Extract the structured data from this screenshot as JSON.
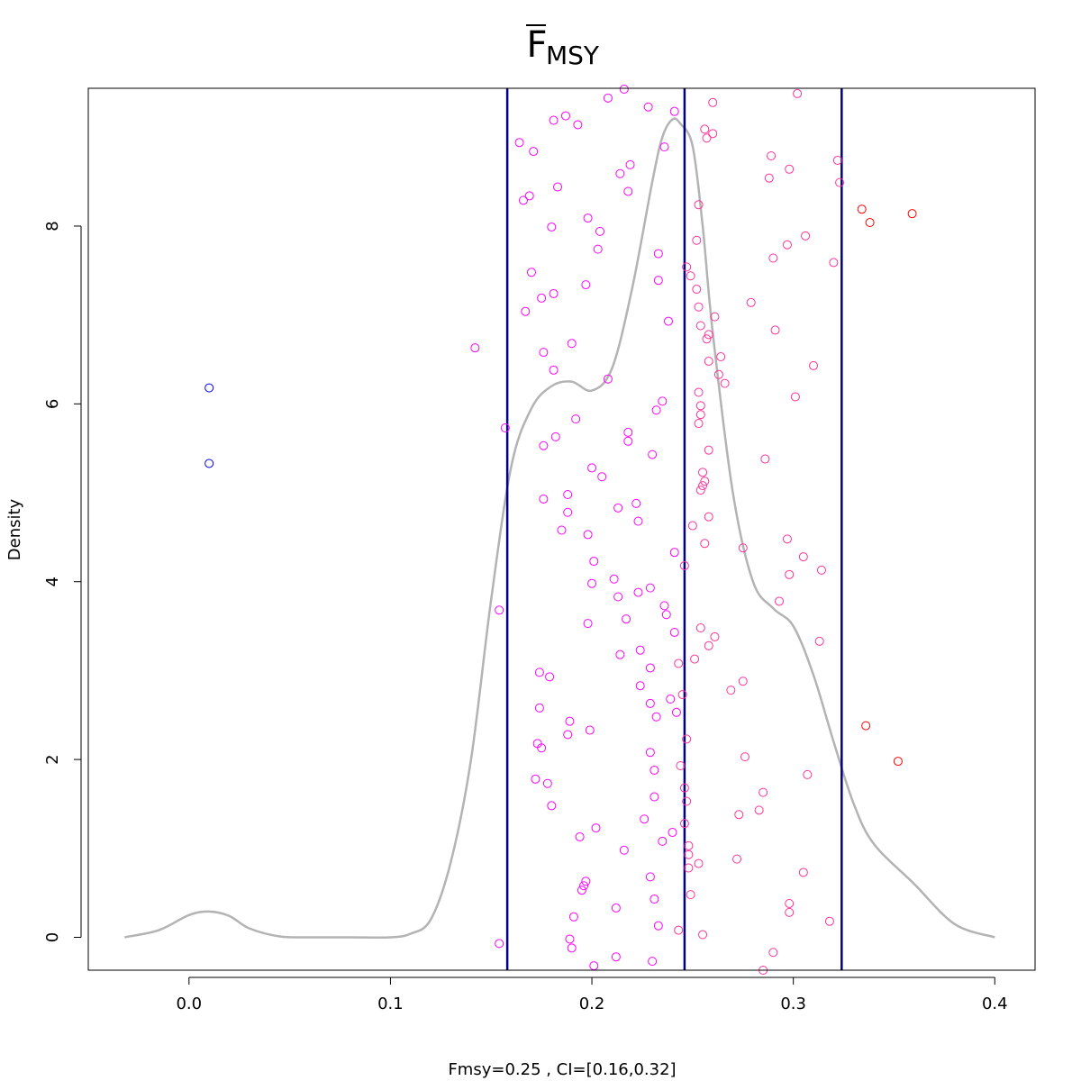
{
  "chart_data": {
    "type": "scatter",
    "title": {
      "main": "F",
      "subscript": "MSY"
    },
    "xlabel": "Fmsy=0.25 , CI=[0.16,0.32]",
    "ylabel": "Density",
    "xlim": [
      -0.05,
      0.42
    ],
    "ylim": [
      -0.37,
      9.55
    ],
    "x_ticks": [
      {
        "value": 0.0,
        "label": "0.0"
      },
      {
        "value": 0.1,
        "label": "0.1"
      },
      {
        "value": 0.2,
        "label": "0.2"
      },
      {
        "value": 0.3,
        "label": "0.3"
      },
      {
        "value": 0.4,
        "label": "0.4"
      }
    ],
    "y_ticks": [
      {
        "value": 0,
        "label": "0"
      },
      {
        "value": 2,
        "label": "2"
      },
      {
        "value": 4,
        "label": "4"
      },
      {
        "value": 6,
        "label": "6"
      },
      {
        "value": 8,
        "label": "8"
      }
    ],
    "grid": false,
    "reference_lines": [
      {
        "x": 0.158,
        "color": "#000080"
      },
      {
        "x": 0.246,
        "color": "#000080"
      },
      {
        "x": 0.324,
        "color": "#000080"
      }
    ],
    "density_curve": {
      "color": "#b3b3b3",
      "x": [
        -0.032,
        -0.015,
        0.0,
        0.01,
        0.02,
        0.03,
        0.045,
        0.06,
        0.08,
        0.1,
        0.11,
        0.12,
        0.13,
        0.14,
        0.15,
        0.16,
        0.17,
        0.18,
        0.19,
        0.2,
        0.21,
        0.22,
        0.23,
        0.235,
        0.24,
        0.244,
        0.25,
        0.255,
        0.26,
        0.27,
        0.28,
        0.29,
        0.3,
        0.31,
        0.32,
        0.33,
        0.34,
        0.36,
        0.38,
        0.4
      ],
      "y": [
        0.0,
        0.08,
        0.25,
        0.29,
        0.24,
        0.1,
        0.01,
        0.0,
        0.0,
        0.0,
        0.04,
        0.2,
        0.85,
        2.0,
        3.8,
        5.3,
        5.95,
        6.2,
        6.25,
        6.15,
        6.4,
        7.3,
        8.5,
        9.0,
        9.2,
        9.15,
        8.9,
        8.0,
        6.8,
        5.0,
        4.0,
        3.7,
        3.5,
        2.95,
        2.2,
        1.5,
        1.05,
        0.6,
        0.15,
        0.0
      ]
    },
    "series": [
      {
        "color": "#0000ff",
        "points": [
          [
            0.01,
            6.18
          ],
          [
            0.01,
            5.33
          ]
        ]
      },
      {
        "color": "#ff00ff",
        "points": [
          [
            0.142,
            6.63
          ],
          [
            0.154,
            3.68
          ],
          [
            0.154,
            -0.07
          ],
          [
            0.157,
            5.73
          ],
          [
            0.164,
            8.94
          ],
          [
            0.166,
            8.29
          ],
          [
            0.167,
            7.04
          ],
          [
            0.169,
            8.34
          ],
          [
            0.17,
            7.48
          ],
          [
            0.171,
            8.84
          ],
          [
            0.172,
            1.78
          ],
          [
            0.173,
            2.18
          ],
          [
            0.174,
            2.98
          ],
          [
            0.174,
            2.58
          ],
          [
            0.175,
            7.19
          ],
          [
            0.175,
            2.13
          ],
          [
            0.176,
            6.58
          ],
          [
            0.176,
            5.53
          ],
          [
            0.176,
            4.93
          ],
          [
            0.178,
            1.73
          ],
          [
            0.179,
            2.93
          ],
          [
            0.18,
            1.48
          ],
          [
            0.18,
            7.99
          ],
          [
            0.181,
            9.19
          ],
          [
            0.181,
            7.24
          ],
          [
            0.181,
            6.38
          ],
          [
            0.182,
            5.63
          ],
          [
            0.183,
            8.44
          ],
          [
            0.185,
            4.58
          ],
          [
            0.187,
            9.24
          ],
          [
            0.188,
            4.98
          ],
          [
            0.188,
            4.78
          ],
          [
            0.188,
            2.28
          ],
          [
            0.189,
            2.43
          ],
          [
            0.189,
            -0.02
          ],
          [
            0.19,
            6.68
          ],
          [
            0.19,
            -0.12
          ],
          [
            0.191,
            0.23
          ],
          [
            0.192,
            5.83
          ],
          [
            0.193,
            9.14
          ],
          [
            0.194,
            1.13
          ],
          [
            0.195,
            0.53
          ],
          [
            0.196,
            0.58
          ],
          [
            0.197,
            0.63
          ],
          [
            0.197,
            7.34
          ],
          [
            0.198,
            8.09
          ],
          [
            0.198,
            4.53
          ],
          [
            0.198,
            3.53
          ],
          [
            0.199,
            2.33
          ],
          [
            0.2,
            3.98
          ],
          [
            0.2,
            5.28
          ],
          [
            0.201,
            4.23
          ],
          [
            0.201,
            -0.32
          ],
          [
            0.202,
            1.23
          ],
          [
            0.203,
            7.74
          ],
          [
            0.204,
            7.94
          ],
          [
            0.205,
            5.18
          ],
          [
            0.208,
            9.44
          ],
          [
            0.208,
            6.28
          ],
          [
            0.211,
            4.03
          ],
          [
            0.212,
            -0.22
          ],
          [
            0.212,
            0.33
          ],
          [
            0.213,
            3.83
          ],
          [
            0.213,
            4.83
          ],
          [
            0.214,
            8.59
          ],
          [
            0.214,
            3.18
          ],
          [
            0.216,
            0.98
          ],
          [
            0.216,
            9.54
          ],
          [
            0.217,
            3.58
          ],
          [
            0.218,
            5.68
          ],
          [
            0.218,
            5.58
          ],
          [
            0.218,
            8.39
          ],
          [
            0.219,
            8.69
          ],
          [
            0.222,
            4.88
          ],
          [
            0.223,
            3.88
          ],
          [
            0.223,
            4.68
          ],
          [
            0.224,
            3.23
          ],
          [
            0.224,
            2.83
          ],
          [
            0.226,
            1.33
          ],
          [
            0.228,
            9.34
          ],
          [
            0.229,
            3.93
          ],
          [
            0.229,
            2.63
          ],
          [
            0.229,
            2.08
          ],
          [
            0.229,
            0.68
          ],
          [
            0.229,
            3.03
          ],
          [
            0.23,
            5.43
          ],
          [
            0.23,
            -0.27
          ],
          [
            0.231,
            1.88
          ],
          [
            0.231,
            1.58
          ],
          [
            0.231,
            0.43
          ],
          [
            0.232,
            2.48
          ],
          [
            0.232,
            5.93
          ],
          [
            0.233,
            0.13
          ],
          [
            0.233,
            7.39
          ],
          [
            0.233,
            7.69
          ],
          [
            0.235,
            1.08
          ],
          [
            0.235,
            6.03
          ],
          [
            0.236,
            3.73
          ],
          [
            0.236,
            8.89
          ],
          [
            0.237,
            3.63
          ],
          [
            0.238,
            6.93
          ],
          [
            0.239,
            2.68
          ],
          [
            0.24,
            1.18
          ],
          [
            0.241,
            9.29
          ],
          [
            0.241,
            4.33
          ],
          [
            0.241,
            3.43
          ],
          [
            0.242,
            2.53
          ]
        ]
      },
      {
        "color": "#ff3399",
        "points": [
          [
            0.243,
            3.08
          ],
          [
            0.243,
            0.08
          ],
          [
            0.244,
            1.93
          ],
          [
            0.245,
            2.73
          ],
          [
            0.246,
            4.18
          ],
          [
            0.246,
            1.28
          ],
          [
            0.246,
            1.68
          ],
          [
            0.247,
            2.23
          ],
          [
            0.247,
            1.53
          ],
          [
            0.247,
            7.54
          ],
          [
            0.248,
            0.78
          ],
          [
            0.248,
            1.03
          ],
          [
            0.248,
            0.93
          ],
          [
            0.249,
            7.44
          ],
          [
            0.249,
            0.48
          ],
          [
            0.25,
            4.63
          ],
          [
            0.251,
            3.13
          ],
          [
            0.252,
            7.84
          ],
          [
            0.252,
            7.29
          ],
          [
            0.253,
            8.24
          ],
          [
            0.253,
            7.09
          ],
          [
            0.253,
            0.83
          ],
          [
            0.253,
            5.78
          ],
          [
            0.253,
            6.13
          ],
          [
            0.254,
            5.98
          ],
          [
            0.254,
            5.88
          ],
          [
            0.254,
            6.88
          ],
          [
            0.254,
            5.03
          ],
          [
            0.254,
            3.48
          ],
          [
            0.255,
            5.23
          ],
          [
            0.255,
            0.03
          ],
          [
            0.255,
            5.08
          ],
          [
            0.256,
            4.43
          ],
          [
            0.256,
            5.13
          ],
          [
            0.256,
            9.09
          ],
          [
            0.257,
            6.73
          ],
          [
            0.257,
            8.99
          ],
          [
            0.258,
            6.48
          ],
          [
            0.258,
            3.28
          ],
          [
            0.258,
            5.48
          ],
          [
            0.258,
            4.73
          ],
          [
            0.258,
            6.78
          ],
          [
            0.26,
            9.39
          ],
          [
            0.26,
            9.04
          ],
          [
            0.261,
            3.38
          ],
          [
            0.261,
            6.98
          ],
          [
            0.263,
            6.33
          ],
          [
            0.264,
            6.53
          ],
          [
            0.266,
            6.23
          ],
          [
            0.269,
            2.78
          ],
          [
            0.272,
            0.88
          ],
          [
            0.273,
            1.38
          ],
          [
            0.275,
            4.38
          ],
          [
            0.275,
            2.88
          ],
          [
            0.276,
            2.03
          ],
          [
            0.279,
            7.14
          ],
          [
            0.283,
            1.43
          ],
          [
            0.285,
            1.63
          ],
          [
            0.285,
            -0.37
          ],
          [
            0.286,
            5.38
          ],
          [
            0.288,
            8.54
          ],
          [
            0.289,
            8.79
          ],
          [
            0.29,
            7.64
          ],
          [
            0.29,
            -0.17
          ],
          [
            0.291,
            6.83
          ],
          [
            0.293,
            3.78
          ],
          [
            0.297,
            7.79
          ],
          [
            0.297,
            4.48
          ],
          [
            0.298,
            4.08
          ],
          [
            0.298,
            8.64
          ],
          [
            0.298,
            0.28
          ],
          [
            0.298,
            0.38
          ],
          [
            0.301,
            6.08
          ],
          [
            0.302,
            9.49
          ],
          [
            0.305,
            0.73
          ],
          [
            0.305,
            4.28
          ],
          [
            0.306,
            7.89
          ],
          [
            0.307,
            1.83
          ],
          [
            0.31,
            6.43
          ],
          [
            0.313,
            3.33
          ],
          [
            0.314,
            4.13
          ],
          [
            0.318,
            0.18
          ],
          [
            0.32,
            7.59
          ],
          [
            0.322,
            8.74
          ],
          [
            0.323,
            8.49
          ]
        ]
      },
      {
        "color": "#ff0000",
        "points": [
          [
            0.334,
            8.19
          ],
          [
            0.336,
            2.38
          ],
          [
            0.338,
            8.04
          ],
          [
            0.352,
            1.98
          ],
          [
            0.359,
            8.14
          ]
        ]
      }
    ]
  }
}
